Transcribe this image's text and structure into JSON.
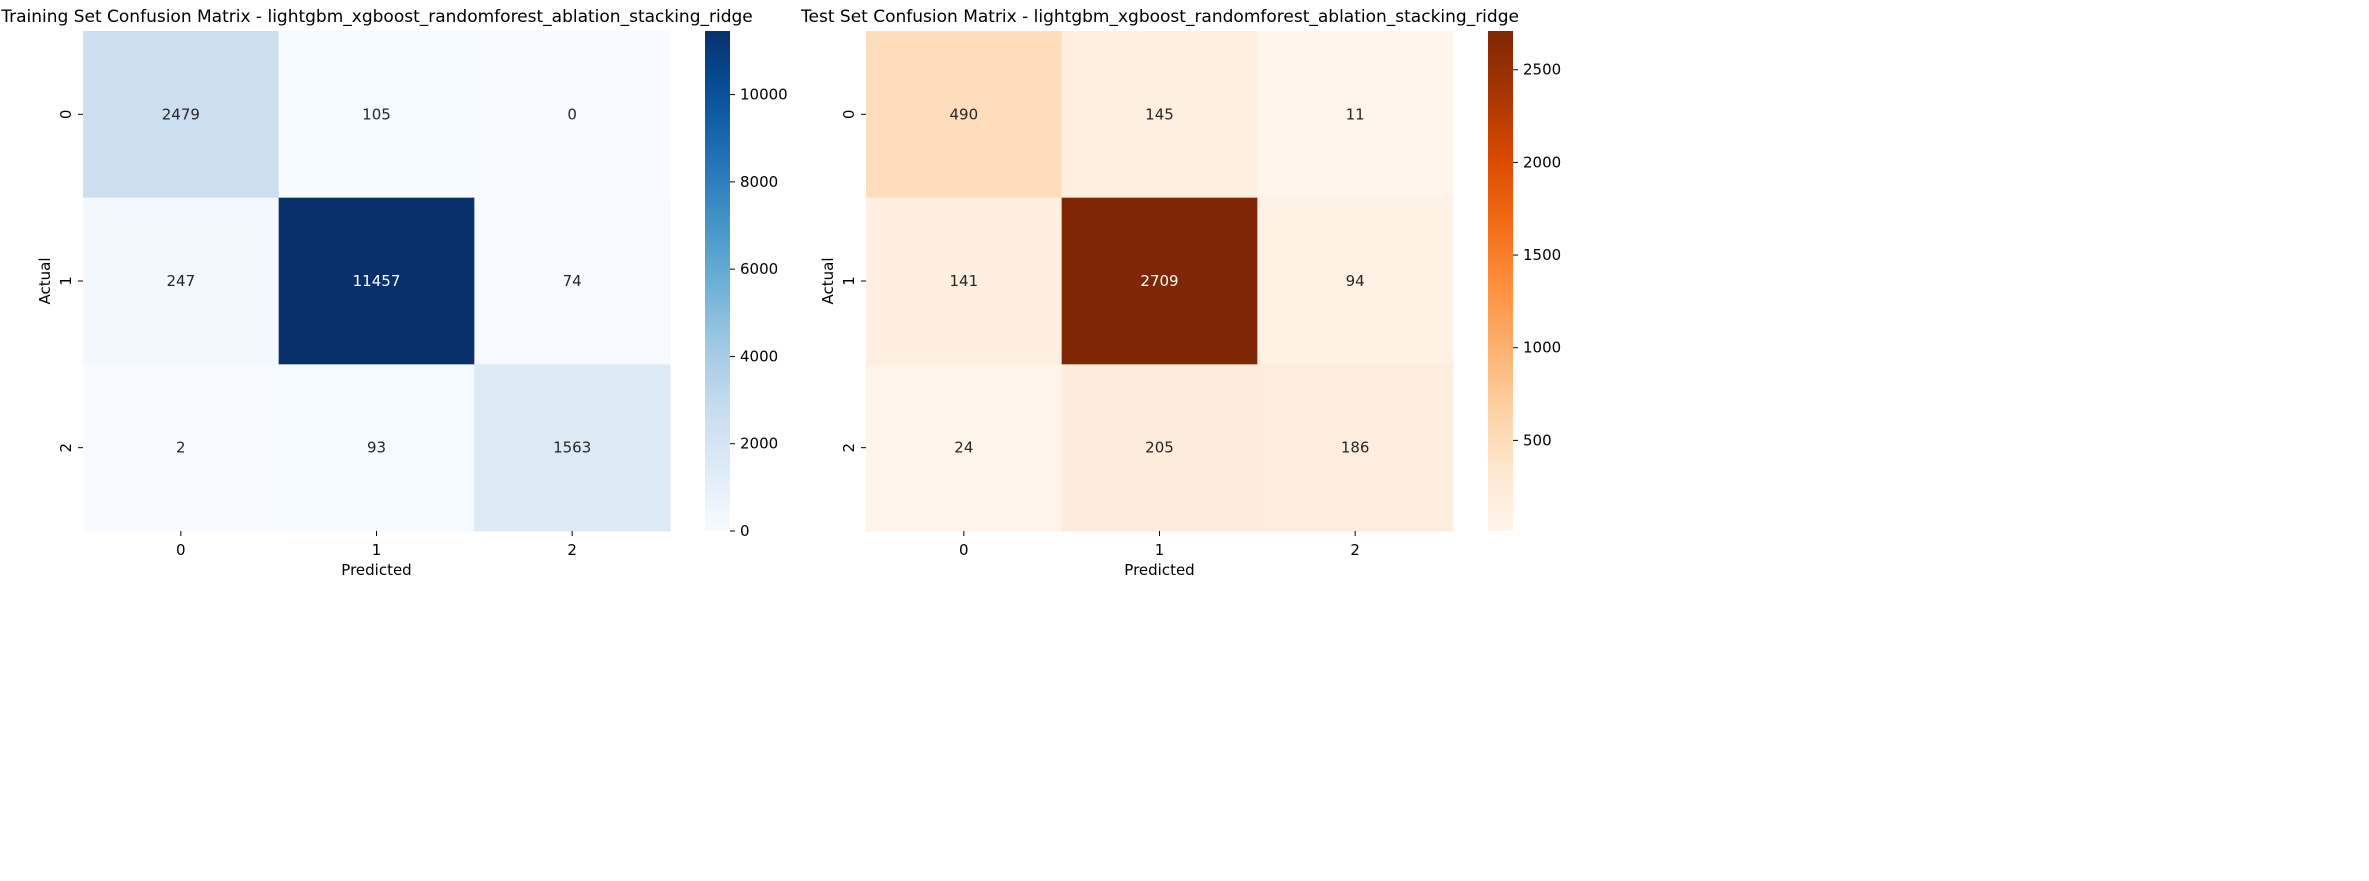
{
  "chart_data": [
    {
      "type": "heatmap",
      "title": "Training Set Confusion Matrix - lightgbm_xgboost_randomforest_ablation_stacking_ridge",
      "xlabel": "Predicted",
      "ylabel": "Actual",
      "x_categories": [
        "0",
        "1",
        "2"
      ],
      "y_categories": [
        "0",
        "1",
        "2"
      ],
      "values": [
        [
          2479,
          105,
          0
        ],
        [
          247,
          11457,
          74
        ],
        [
          2,
          93,
          1563
        ]
      ],
      "colormap": "Blues",
      "vmin": 0,
      "vmax": 11457,
      "colorbar_ticks": [
        0,
        2000,
        4000,
        6000,
        8000,
        10000
      ]
    },
    {
      "type": "heatmap",
      "title": "Test Set Confusion Matrix - lightgbm_xgboost_randomforest_ablation_stacking_ridge",
      "xlabel": "Predicted",
      "ylabel": "Actual",
      "x_categories": [
        "0",
        "1",
        "2"
      ],
      "y_categories": [
        "0",
        "1",
        "2"
      ],
      "values": [
        [
          490,
          145,
          11
        ],
        [
          141,
          2709,
          94
        ],
        [
          24,
          205,
          186
        ]
      ],
      "colormap": "Oranges",
      "vmin": 11,
      "vmax": 2709,
      "colorbar_ticks": [
        500,
        1000,
        1500,
        2000,
        2500
      ]
    }
  ],
  "colormaps": {
    "Blues": [
      "#f7fbff",
      "#deebf7",
      "#c6dbef",
      "#9ecae1",
      "#6baed6",
      "#4292c6",
      "#2171b5",
      "#08519c",
      "#08306b"
    ],
    "Oranges": [
      "#fff5eb",
      "#fee6ce",
      "#fdd0a2",
      "#fdae6b",
      "#fd8d3c",
      "#f16913",
      "#d94801",
      "#a63603",
      "#7f2704"
    ]
  }
}
